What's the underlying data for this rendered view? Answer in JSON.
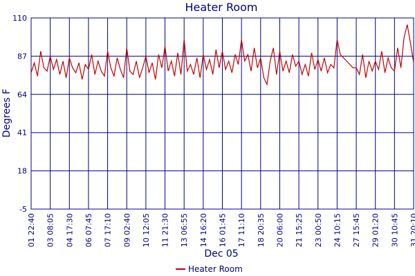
{
  "chart_data": {
    "type": "line",
    "title": "Heater Room",
    "x_label": "Dec 05",
    "y_label": "Degrees F",
    "categories": [
      "01 22:40",
      null,
      null,
      null,
      null,
      null,
      "03 08:05",
      null,
      null,
      null,
      null,
      null,
      "04 17:30",
      null,
      null,
      null,
      null,
      null,
      "06 07:45",
      null,
      null,
      null,
      null,
      null,
      "07 17:10",
      null,
      null,
      null,
      null,
      null,
      "09 02:40",
      null,
      null,
      null,
      null,
      null,
      "10 12:05",
      null,
      null,
      null,
      null,
      null,
      "11 21:30",
      null,
      null,
      null,
      null,
      null,
      "13 06:55",
      null,
      null,
      null,
      null,
      null,
      "14 16:20",
      null,
      null,
      null,
      null,
      null,
      "16 01:45",
      null,
      null,
      null,
      null,
      null,
      "17 11:10",
      null,
      null,
      null,
      null,
      null,
      "18 20:35",
      null,
      null,
      null,
      null,
      null,
      "20 06:00",
      null,
      null,
      null,
      null,
      null,
      "21 15:25",
      null,
      null,
      null,
      null,
      null,
      "23 00:50",
      null,
      null,
      null,
      null,
      null,
      "24 10:15",
      null,
      null,
      null,
      null,
      null,
      "27 15:45",
      null,
      null,
      null,
      null,
      null,
      "29 01:20",
      null,
      null,
      null,
      null,
      null,
      "30 10:45",
      null,
      null,
      null,
      null,
      null,
      "31 20:10"
    ],
    "series": [
      {
        "name": "Heater Room",
        "color": "#c00000",
        "values": [
          77,
          83,
          75,
          90,
          80,
          78,
          87,
          79,
          85,
          76,
          84,
          74,
          86,
          80,
          77,
          83,
          73,
          82,
          79,
          88,
          76,
          84,
          78,
          75,
          90,
          80,
          75,
          86,
          79,
          74,
          92,
          78,
          76,
          84,
          74,
          80,
          87,
          77,
          83,
          73,
          88,
          80,
          93,
          78,
          84,
          75,
          89,
          76,
          97,
          78,
          82,
          76,
          86,
          74,
          88,
          79,
          85,
          76,
          91,
          80,
          90,
          79,
          84,
          77,
          88,
          82,
          97,
          84,
          88,
          78,
          92,
          80,
          86,
          74,
          70,
          84,
          92,
          76,
          90,
          78,
          84,
          77,
          88,
          81,
          84,
          76,
          82,
          75,
          89,
          79,
          85,
          78,
          86,
          77,
          82,
          80,
          97,
          88,
          86,
          84,
          82,
          80,
          80,
          76,
          88,
          74,
          84,
          78,
          84,
          79,
          90,
          77,
          86,
          80,
          78,
          92,
          80,
          98,
          106,
          95,
          83
        ]
      }
    ],
    "ylim": [
      -5,
      110
    ],
    "yticks": [
      -5,
      18,
      41,
      64,
      87,
      110
    ],
    "grid": true,
    "legend": "bottom"
  }
}
